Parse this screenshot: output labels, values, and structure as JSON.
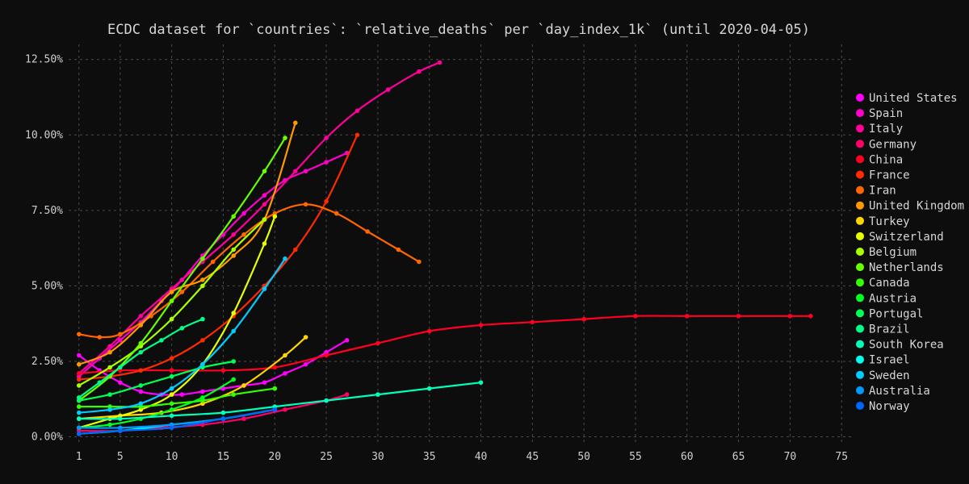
{
  "chart_data": {
    "type": "scatter",
    "title": "ECDC dataset for `countries`: `relative_deaths` per `day_index_1k` (until 2020-04-05)",
    "xlabel": "",
    "ylabel": "",
    "xlim": [
      0,
      76
    ],
    "ylim": [
      -0.002,
      0.13
    ],
    "x_ticks": [
      1,
      5,
      10,
      15,
      20,
      25,
      30,
      35,
      40,
      45,
      50,
      55,
      60,
      65,
      70,
      75
    ],
    "y_ticks": [
      0,
      0.025,
      0.05,
      0.075,
      0.1,
      0.125
    ],
    "y_tick_labels": [
      "0.00%",
      "2.50%",
      "5.00%",
      "7.50%",
      "10.00%",
      "12.50%"
    ],
    "grid": true,
    "legend_position": "right",
    "series": [
      {
        "name": "United States",
        "color": "#ff00ff",
        "x": [
          1,
          3,
          5,
          7,
          9,
          11,
          13,
          15,
          17,
          19,
          21,
          23,
          25,
          27
        ],
        "y": [
          0.027,
          0.022,
          0.018,
          0.015,
          0.014,
          0.014,
          0.015,
          0.016,
          0.017,
          0.018,
          0.021,
          0.024,
          0.028,
          0.032
        ]
      },
      {
        "name": "Spain",
        "color": "#ff00cc",
        "x": [
          1,
          3,
          5,
          7,
          9,
          11,
          13,
          15,
          17,
          19,
          21,
          23,
          25,
          27
        ],
        "y": [
          0.02,
          0.026,
          0.032,
          0.038,
          0.045,
          0.052,
          0.06,
          0.067,
          0.074,
          0.08,
          0.085,
          0.088,
          0.091,
          0.094
        ]
      },
      {
        "name": "Italy",
        "color": "#ff0099",
        "x": [
          1,
          4,
          7,
          10,
          13,
          16,
          19,
          22,
          25,
          28,
          31,
          34,
          36
        ],
        "y": [
          0.021,
          0.03,
          0.04,
          0.049,
          0.058,
          0.067,
          0.077,
          0.088,
          0.099,
          0.108,
          0.115,
          0.121,
          0.124
        ]
      },
      {
        "name": "Germany",
        "color": "#ff0066",
        "x": [
          1,
          5,
          9,
          13,
          17,
          21,
          25,
          27
        ],
        "y": [
          0.002,
          0.002,
          0.003,
          0.004,
          0.006,
          0.009,
          0.012,
          0.014
        ]
      },
      {
        "name": "China",
        "color": "#ff0020",
        "x": [
          1,
          5,
          10,
          15,
          20,
          25,
          30,
          35,
          40,
          45,
          50,
          55,
          60,
          65,
          70,
          72
        ],
        "y": [
          0.021,
          0.022,
          0.022,
          0.022,
          0.023,
          0.027,
          0.031,
          0.035,
          0.037,
          0.038,
          0.039,
          0.04,
          0.04,
          0.04,
          0.04,
          0.04
        ]
      },
      {
        "name": "France",
        "color": "#ff2a00",
        "x": [
          1,
          4,
          7,
          10,
          13,
          16,
          19,
          22,
          25,
          28
        ],
        "y": [
          0.019,
          0.02,
          0.022,
          0.026,
          0.032,
          0.04,
          0.05,
          0.062,
          0.078,
          0.1
        ]
      },
      {
        "name": "Iran",
        "color": "#ff6600",
        "x": [
          1,
          3,
          5,
          8,
          11,
          14,
          17,
          20,
          23,
          26,
          29,
          32,
          34
        ],
        "y": [
          0.034,
          0.033,
          0.034,
          0.04,
          0.048,
          0.058,
          0.067,
          0.074,
          0.077,
          0.074,
          0.068,
          0.062,
          0.058
        ]
      },
      {
        "name": "United Kingdom",
        "color": "#ff9900",
        "x": [
          1,
          4,
          7,
          10,
          13,
          16,
          19,
          22
        ],
        "y": [
          0.024,
          0.028,
          0.037,
          0.048,
          0.052,
          0.06,
          0.072,
          0.104
        ]
      },
      {
        "name": "Turkey",
        "color": "#ffd500",
        "x": [
          1,
          5,
          9,
          13,
          17,
          21,
          23
        ],
        "y": [
          0.006,
          0.007,
          0.008,
          0.011,
          0.017,
          0.027,
          0.033
        ]
      },
      {
        "name": "Switzerland",
        "color": "#e6ff00",
        "x": [
          1,
          4,
          7,
          10,
          13,
          16,
          19,
          20
        ],
        "y": [
          0.003,
          0.006,
          0.009,
          0.014,
          0.024,
          0.041,
          0.064,
          0.073
        ]
      },
      {
        "name": "Belgium",
        "color": "#aaff00",
        "x": [
          1,
          4,
          7,
          10,
          13,
          16,
          19
        ],
        "y": [
          0.017,
          0.023,
          0.03,
          0.039,
          0.05,
          0.062,
          0.072
        ]
      },
      {
        "name": "Netherlands",
        "color": "#66ff00",
        "x": [
          1,
          4,
          7,
          10,
          13,
          16,
          19,
          21
        ],
        "y": [
          0.012,
          0.02,
          0.031,
          0.045,
          0.059,
          0.073,
          0.088,
          0.099
        ]
      },
      {
        "name": "Canada",
        "color": "#33ff00",
        "x": [
          1,
          4,
          7,
          10,
          13,
          16,
          20
        ],
        "y": [
          0.01,
          0.01,
          0.01,
          0.011,
          0.012,
          0.014,
          0.016
        ]
      },
      {
        "name": "Austria",
        "color": "#00ff22",
        "x": [
          1,
          4,
          7,
          10,
          13,
          16
        ],
        "y": [
          0.003,
          0.004,
          0.006,
          0.009,
          0.013,
          0.019
        ]
      },
      {
        "name": "Portugal",
        "color": "#00ff55",
        "x": [
          1,
          4,
          7,
          10,
          13,
          16
        ],
        "y": [
          0.012,
          0.014,
          0.017,
          0.02,
          0.023,
          0.025
        ]
      },
      {
        "name": "Brazil",
        "color": "#00ff88",
        "x": [
          1,
          3,
          5,
          7,
          9,
          11,
          13
        ],
        "y": [
          0.013,
          0.018,
          0.023,
          0.028,
          0.032,
          0.036,
          0.039
        ]
      },
      {
        "name": "South Korea",
        "color": "#00ffbb",
        "x": [
          1,
          5,
          10,
          15,
          20,
          25,
          30,
          35,
          40
        ],
        "y": [
          0.006,
          0.006,
          0.007,
          0.008,
          0.01,
          0.012,
          0.014,
          0.016,
          0.018
        ]
      },
      {
        "name": "Israel",
        "color": "#00ffee",
        "x": [
          1,
          5,
          10,
          15,
          20
        ],
        "y": [
          0.001,
          0.002,
          0.004,
          0.006,
          0.009
        ]
      },
      {
        "name": "Sweden",
        "color": "#00ccff",
        "x": [
          1,
          4,
          7,
          10,
          13,
          16,
          19,
          21
        ],
        "y": [
          0.008,
          0.009,
          0.011,
          0.016,
          0.024,
          0.035,
          0.049,
          0.059
        ]
      },
      {
        "name": "Australia",
        "color": "#0099ff",
        "x": [
          1,
          5,
          10,
          15,
          20
        ],
        "y": [
          0.003,
          0.003,
          0.004,
          0.006,
          0.009
        ]
      },
      {
        "name": "Norway",
        "color": "#0066ff",
        "x": [
          1,
          5,
          10,
          15,
          20
        ],
        "y": [
          0.001,
          0.002,
          0.003,
          0.006,
          0.009
        ]
      }
    ]
  }
}
